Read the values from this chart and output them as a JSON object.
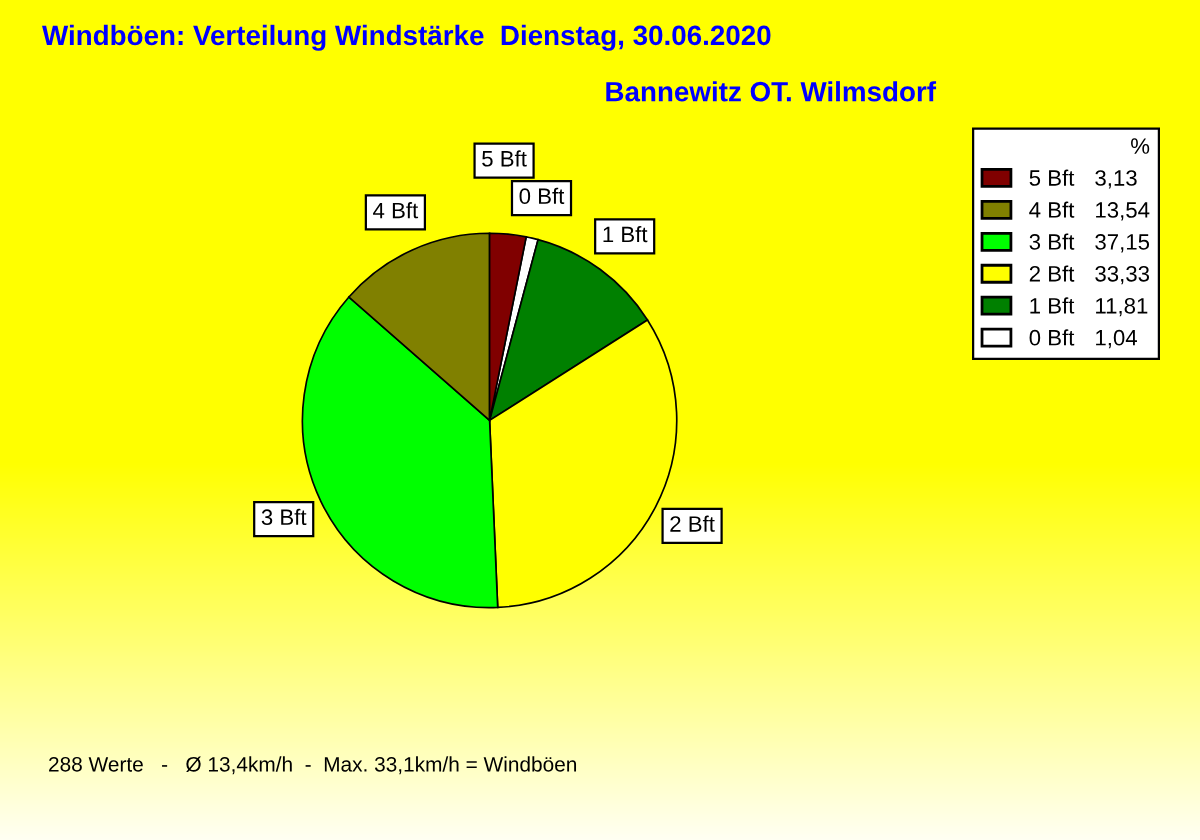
{
  "chart_data": {
    "type": "pie",
    "title": "Windböen: Verteilung Windstärke  Dienstag, 30.06.2020",
    "subtitle": "Bannewitz OT. Wilmsdorf",
    "categories": [
      "5 Bft",
      "4 Bft",
      "3 Bft",
      "2 Bft",
      "1 Bft",
      "0 Bft"
    ],
    "values": [
      3.13,
      13.54,
      37.15,
      33.33,
      11.81,
      1.04
    ],
    "value_labels": [
      "3,13",
      "13,54",
      "37,15",
      "33,33",
      "11,81",
      "1,04"
    ],
    "colors": [
      "#800000",
      "#808000",
      "#00ff00",
      "#ffff00",
      "#008000",
      "#ffffff"
    ],
    "legend_title": "%",
    "legend": "top right",
    "annotations": [
      "288 Werte   -   Ø 13,4km/h  -  Max. 33,1km/h = Windböen"
    ]
  }
}
